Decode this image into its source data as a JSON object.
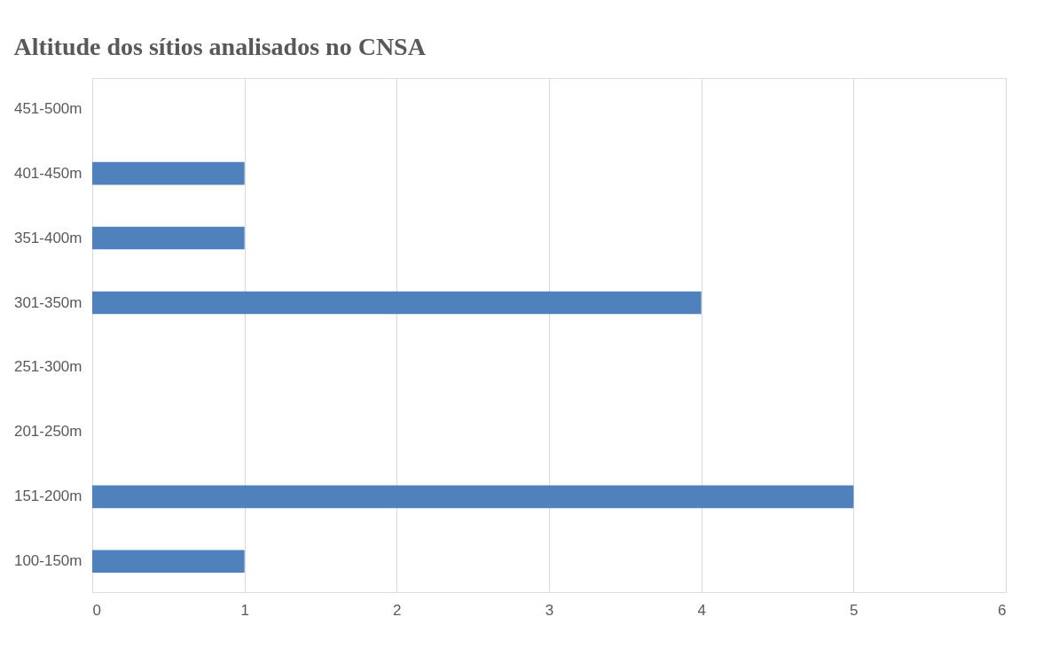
{
  "chart_data": {
    "type": "bar",
    "orientation": "horizontal",
    "title": "Altitude dos sítios analisados no CNSA",
    "categories": [
      "451-500m",
      "401-450m",
      "351-400m",
      "301-350m",
      "251-300m",
      "201-250m",
      "151-200m",
      "100-150m"
    ],
    "values": [
      0,
      1,
      1,
      4,
      0,
      0,
      5,
      1
    ],
    "color": "#4f81bd",
    "xlim": [
      0,
      6
    ],
    "xticks": [
      0,
      1,
      2,
      3,
      4,
      5,
      6
    ],
    "grid": "x"
  }
}
